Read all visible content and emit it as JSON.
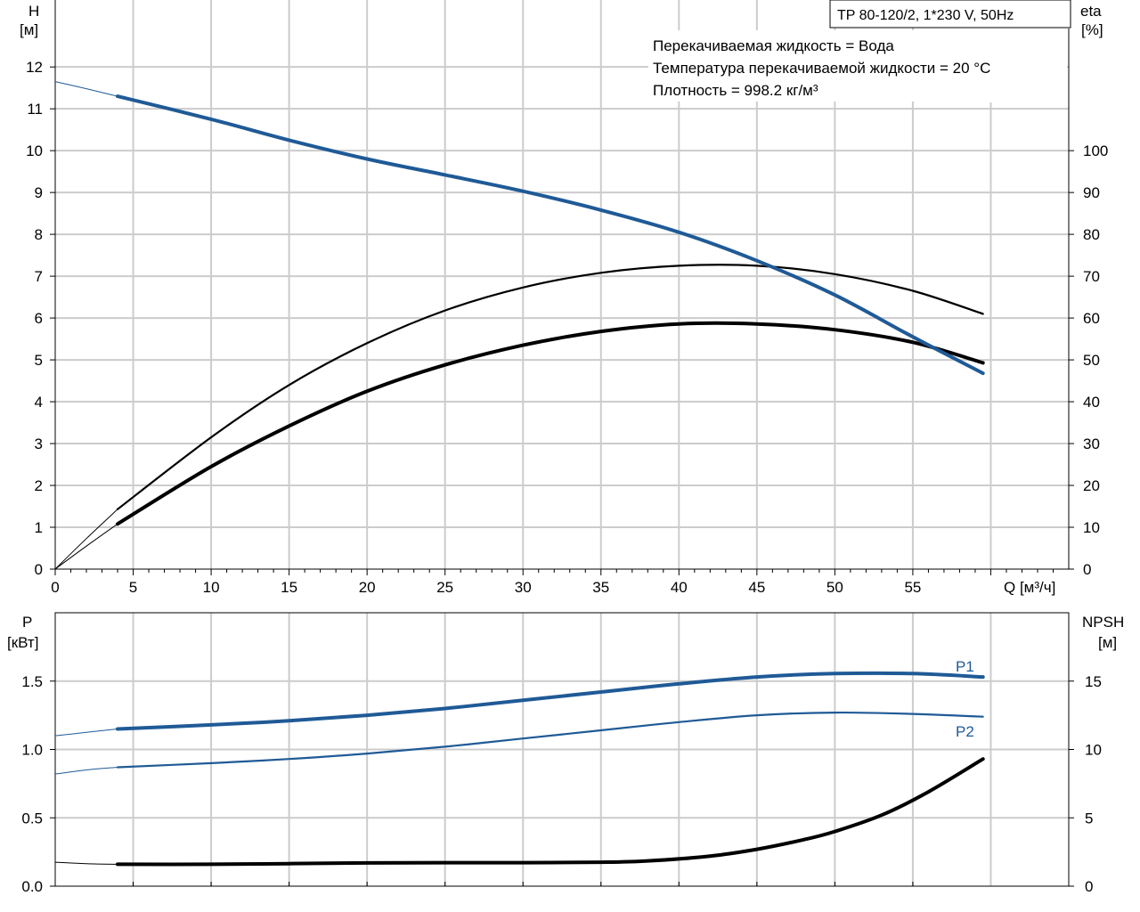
{
  "chart_data": [
    {
      "type": "line",
      "title": "TP 80-120/2, 1*230 V, 50Hz",
      "info": [
        "Перекачиваемая жидкость = Вода",
        "Температура перекачиваемой жидкости = 20 °C",
        "Плотность = 998.2 кг/м³"
      ],
      "xlabel": "Q [м³/ч]",
      "ylabel_left": [
        "H",
        "[м]"
      ],
      "ylabel_right": [
        "eta",
        "[%]"
      ],
      "xlim": [
        0,
        65
      ],
      "ylim_left": [
        0,
        13.6
      ],
      "ylim_right": [
        0,
        136
      ],
      "x_ticks": [
        0,
        5,
        10,
        15,
        20,
        25,
        30,
        35,
        40,
        45,
        50,
        55
      ],
      "y_ticks_left": [
        0,
        1,
        2,
        3,
        4,
        5,
        6,
        7,
        8,
        9,
        10,
        11,
        12
      ],
      "y_ticks_right": [
        0,
        10,
        20,
        30,
        40,
        50,
        60,
        70,
        80,
        90,
        100
      ],
      "grid": true,
      "colors": {
        "head": "#1f5a96",
        "efficiency": "#000000",
        "grid": "#cccccc"
      },
      "series": [
        {
          "name": "H",
          "axis": "left",
          "extrapolated": {
            "x": [
              0,
              2,
              4
            ],
            "y": [
              11.65,
              11.48,
              11.3
            ]
          },
          "x": [
            4,
            10,
            15,
            20,
            25,
            30,
            35,
            40,
            45,
            50,
            55,
            59.5
          ],
          "y": [
            11.3,
            10.75,
            10.25,
            9.8,
            9.42,
            9.03,
            8.58,
            8.05,
            7.37,
            6.55,
            5.55,
            4.68
          ]
        },
        {
          "name": "eta_pump",
          "axis": "right",
          "extrapolated": {
            "x": [
              0,
              2,
              4
            ],
            "y": [
              0,
              7.3,
              14.3
            ]
          },
          "x": [
            4,
            10,
            15,
            20,
            25,
            30,
            35,
            40,
            45,
            50,
            55,
            59.5
          ],
          "y": [
            14.3,
            31.5,
            44,
            54,
            61.8,
            67.3,
            70.8,
            72.5,
            72.5,
            70.5,
            66.5,
            61
          ]
        },
        {
          "name": "eta_total",
          "axis": "right",
          "extrapolated": {
            "x": [
              0,
              2,
              4
            ],
            "y": [
              0,
              5.5,
              10.8
            ]
          },
          "x": [
            4,
            10,
            15,
            20,
            25,
            30,
            35,
            40,
            45,
            50,
            55,
            59.5
          ],
          "y": [
            10.8,
            24.5,
            34.2,
            42.5,
            48.8,
            53.5,
            56.8,
            58.6,
            58.6,
            57.2,
            54.2,
            49.3
          ]
        }
      ]
    },
    {
      "type": "line",
      "xlim": [
        0,
        65
      ],
      "ylabel_left": [
        "P",
        "[кВт]"
      ],
      "ylabel_right": [
        "NPSH",
        "[м]"
      ],
      "ylim_left": [
        0,
        2.0
      ],
      "ylim_right": [
        0,
        20
      ],
      "y_ticks_left": [
        "0.0",
        "0.5",
        "1.0",
        "1.5"
      ],
      "y_ticks_right": [
        0,
        5,
        10,
        15
      ],
      "grid": true,
      "colors": {
        "power": "#1f5a96",
        "npsh": "#000000"
      },
      "series": [
        {
          "name": "P1",
          "axis": "left",
          "extrapolated": {
            "x": [
              0,
              2,
              4
            ],
            "y": [
              1.1,
              1.125,
              1.15
            ]
          },
          "x": [
            4,
            10,
            15,
            20,
            25,
            30,
            35,
            40,
            45,
            50,
            55,
            59.5
          ],
          "y": [
            1.15,
            1.18,
            1.21,
            1.25,
            1.3,
            1.36,
            1.42,
            1.48,
            1.53,
            1.555,
            1.555,
            1.53
          ]
        },
        {
          "name": "P2",
          "axis": "left",
          "extrapolated": {
            "x": [
              0,
              2,
              4
            ],
            "y": [
              0.82,
              0.85,
              0.87
            ]
          },
          "x": [
            4,
            10,
            15,
            20,
            25,
            30,
            35,
            40,
            45,
            50,
            55,
            59.5
          ],
          "y": [
            0.87,
            0.9,
            0.93,
            0.97,
            1.02,
            1.08,
            1.14,
            1.2,
            1.25,
            1.27,
            1.26,
            1.24
          ]
        },
        {
          "name": "NPSH",
          "axis": "right",
          "extrapolated": {
            "x": [
              0,
              2,
              4
            ],
            "y": [
              1.75,
              1.65,
              1.6
            ]
          },
          "x": [
            4,
            10,
            15,
            20,
            25,
            30,
            35,
            38,
            42,
            45,
            48,
            50,
            53,
            56,
            59.5
          ],
          "y": [
            1.6,
            1.6,
            1.65,
            1.7,
            1.72,
            1.72,
            1.75,
            1.85,
            2.2,
            2.7,
            3.4,
            4.0,
            5.2,
            6.9,
            9.3
          ]
        }
      ]
    }
  ]
}
